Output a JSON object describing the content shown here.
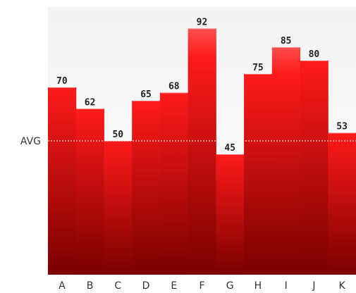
{
  "chart_data": {
    "type": "bar",
    "categories": [
      "A",
      "B",
      "C",
      "D",
      "E",
      "F",
      "G",
      "H",
      "I",
      "J",
      "K"
    ],
    "values": [
      70,
      62,
      50,
      65,
      68,
      92,
      45,
      75,
      85,
      80,
      53
    ],
    "avg_label": "AVG",
    "avg_value": 50,
    "ylim": [
      0,
      100
    ],
    "grid": false,
    "title": "",
    "xlabel": "",
    "ylabel": ""
  },
  "colors": {
    "bar_top": "#ff1a1a",
    "bar_bottom": "#7a0000",
    "bar_top_light": "#ff4d4d",
    "avg_line": "#ffffff",
    "label_text": "#222222",
    "axis_text": "#333333",
    "background_top": "#f2f2f2",
    "background_bottom": "#ffffff"
  }
}
